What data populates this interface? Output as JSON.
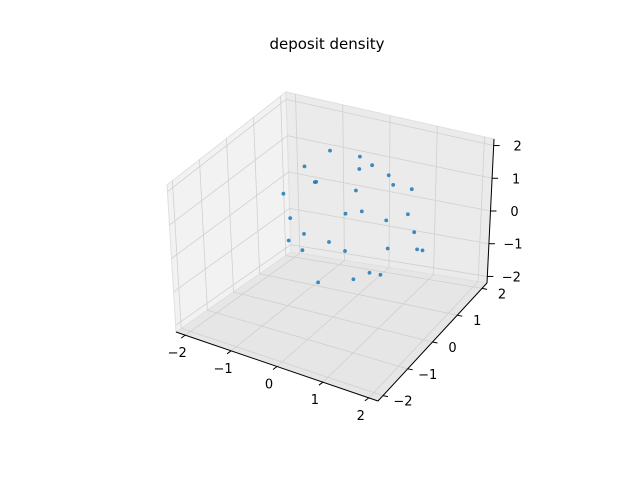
{
  "chart_data": {
    "type": "scatter3d",
    "title": "deposit density",
    "xlabel": "",
    "ylabel": "",
    "zlabel": "",
    "xlim": [
      -2.2,
      2.2
    ],
    "ylim": [
      -2.2,
      2.2
    ],
    "zlim": [
      -2.2,
      2.2
    ],
    "x_ticks": [
      "−2",
      "−1",
      "0",
      "1",
      "2"
    ],
    "x_tick_values": [
      -2,
      -1,
      0,
      1,
      2
    ],
    "y_ticks": [
      "−2",
      "−1",
      "0",
      "1",
      "2"
    ],
    "y_tick_values": [
      -2,
      -1,
      0,
      1,
      2
    ],
    "z_ticks": [
      "−2",
      "−1",
      "0",
      "1",
      "2"
    ],
    "z_tick_values": [
      -2,
      -1,
      0,
      1,
      2
    ],
    "grid": true,
    "marker_color": "#1f77b4",
    "series": [
      {
        "points": [
          [
            -1.2,
            0.3,
            0.8
          ],
          [
            0.5,
            -1.1,
            0.2
          ],
          [
            1.3,
            0.4,
            -0.6
          ],
          [
            -0.4,
            1.2,
            -0.9
          ],
          [
            0.1,
            0.2,
            1.4
          ],
          [
            -1.0,
            -0.7,
            -0.5
          ],
          [
            0.9,
            0.9,
            0.6
          ],
          [
            -0.6,
            -0.3,
            1.1
          ],
          [
            1.1,
            -0.5,
            0.9
          ],
          [
            0.0,
            -1.3,
            -0.8
          ],
          [
            -1.3,
            0.9,
            -0.2
          ],
          [
            0.7,
            1.1,
            -0.4
          ],
          [
            -0.2,
            0.6,
            0.3
          ],
          [
            1.4,
            0.1,
            0.2
          ],
          [
            -0.8,
            -1.0,
            0.5
          ],
          [
            0.3,
            -0.4,
            -1.3
          ],
          [
            -1.1,
            0.1,
            -1.0
          ],
          [
            0.6,
            0.5,
            1.2
          ],
          [
            -0.5,
            1.3,
            0.6
          ],
          [
            1.0,
            -1.0,
            -0.3
          ],
          [
            -0.9,
            0.8,
            1.0
          ],
          [
            0.2,
            1.4,
            0.0
          ],
          [
            1.2,
            0.8,
            -1.0
          ],
          [
            -1.4,
            -0.2,
            0.3
          ],
          [
            0.4,
            -0.9,
            1.1
          ],
          [
            -0.3,
            -1.4,
            0.1
          ],
          [
            0.8,
            -0.2,
            -1.1
          ],
          [
            -0.7,
            0.4,
            -1.3
          ],
          [
            1.3,
            -0.8,
            0.4
          ],
          [
            0.0,
            0.9,
            0.9
          ]
        ]
      }
    ]
  }
}
